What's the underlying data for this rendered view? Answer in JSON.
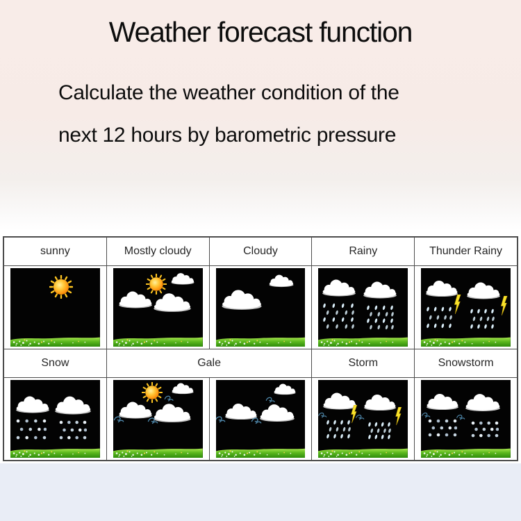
{
  "header": {
    "title": "Weather forecast function",
    "subtitle_line1": "Calculate the weather condition of the",
    "subtitle_line2": "next 12 hours by barometric pressure"
  },
  "forecast_table": {
    "labels_row1": [
      "sunny",
      "Mostly cloudy",
      "Cloudy",
      "Rainy",
      "Thunder Rainy"
    ],
    "labels_row2": [
      {
        "text": "Snow",
        "span": 1
      },
      {
        "text": "Gale",
        "span": 2
      },
      {
        "text": "Storm",
        "span": 1
      },
      {
        "text": "Snowstorm",
        "span": 1
      }
    ],
    "scenes": [
      {
        "name": "sunny",
        "el": [
          [
            "sun",
            57,
            24,
            34
          ]
        ]
      },
      {
        "name": "mostly-cloudy",
        "el": [
          [
            "sun",
            48,
            20,
            30
          ],
          [
            "cloud",
            78,
            13,
            36
          ],
          [
            "cloud",
            25,
            40,
            52
          ],
          [
            "cloud",
            66,
            43,
            58
          ]
        ]
      },
      {
        "name": "cloudy",
        "el": [
          [
            "cloud",
            73,
            16,
            38
          ],
          [
            "cloud",
            29,
            40,
            62
          ]
        ]
      },
      {
        "name": "rainy",
        "el": [
          [
            "cloud",
            23,
            25,
            52
          ],
          [
            "cloud",
            69,
            27,
            52
          ],
          [
            "rain",
            22,
            61,
            46,
            38,
            4,
            4
          ],
          [
            "rain",
            69,
            63,
            40,
            36,
            4,
            4
          ]
        ]
      },
      {
        "name": "thunder-rainy",
        "el": [
          [
            "cloud",
            23,
            26,
            50
          ],
          [
            "cloud",
            70,
            28,
            52
          ],
          [
            "bolt",
            41,
            46,
            28
          ],
          [
            "bolt",
            93,
            48,
            28
          ],
          [
            "rain",
            20,
            63,
            38,
            32,
            4,
            3
          ],
          [
            "rain",
            68,
            65,
            36,
            30,
            4,
            3
          ]
        ]
      },
      {
        "name": "snow",
        "el": [
          [
            "cloud",
            25,
            31,
            52
          ],
          [
            "cloud",
            70,
            32,
            56
          ],
          [
            "snow",
            23,
            63,
            44,
            32,
            4,
            3
          ],
          [
            "snow",
            70,
            64,
            40,
            30,
            4,
            3
          ]
        ]
      },
      {
        "name": "gale-1",
        "el": [
          [
            "sun",
            44,
            16,
            30
          ],
          [
            "cloud",
            78,
            11,
            34
          ],
          [
            "wind",
            63,
            23,
            16
          ],
          [
            "cloud",
            25,
            38,
            52
          ],
          [
            "cloud",
            66,
            42,
            58
          ],
          [
            "wind",
            7,
            50,
            18
          ],
          [
            "wind",
            45,
            52,
            18
          ]
        ]
      },
      {
        "name": "gale-2",
        "el": [
          [
            "cloud",
            77,
            12,
            34
          ],
          [
            "wind",
            62,
            25,
            16
          ],
          [
            "cloud",
            28,
            40,
            50
          ],
          [
            "cloud",
            69,
            42,
            54
          ],
          [
            "wind",
            6,
            50,
            18
          ],
          [
            "wind",
            46,
            52,
            18
          ]
        ]
      },
      {
        "name": "storm",
        "el": [
          [
            "cloud",
            24,
            27,
            52
          ],
          [
            "cloud",
            69,
            29,
            50
          ],
          [
            "wind",
            5,
            45,
            15
          ],
          [
            "wind",
            47,
            47,
            15
          ],
          [
            "bolt",
            40,
            44,
            26
          ],
          [
            "bolt",
            90,
            46,
            26
          ],
          [
            "rain",
            22,
            63,
            36,
            28,
            4,
            3
          ],
          [
            "rain",
            68,
            65,
            34,
            26,
            4,
            3
          ]
        ]
      },
      {
        "name": "snowstorm",
        "el": [
          [
            "cloud",
            24,
            28,
            50
          ],
          [
            "cloud",
            69,
            29,
            54
          ],
          [
            "wind",
            6,
            45,
            15
          ],
          [
            "wind",
            45,
            47,
            15
          ],
          [
            "snow",
            24,
            62,
            42,
            28,
            4,
            3
          ],
          [
            "snow",
            71,
            63,
            40,
            26,
            4,
            3
          ]
        ]
      }
    ]
  },
  "colors": {
    "header_bg": "#f8ece8",
    "footer_bg": "#e9edf6",
    "table_border": "#4c4c4c",
    "scene_sky": "#030303",
    "sun": "#ffa81e",
    "lightning": "#f9e32b",
    "grass": "#5cb81e",
    "wind": "#4f88ab",
    "cloud": "#ffffff",
    "label_text": "#262626"
  }
}
